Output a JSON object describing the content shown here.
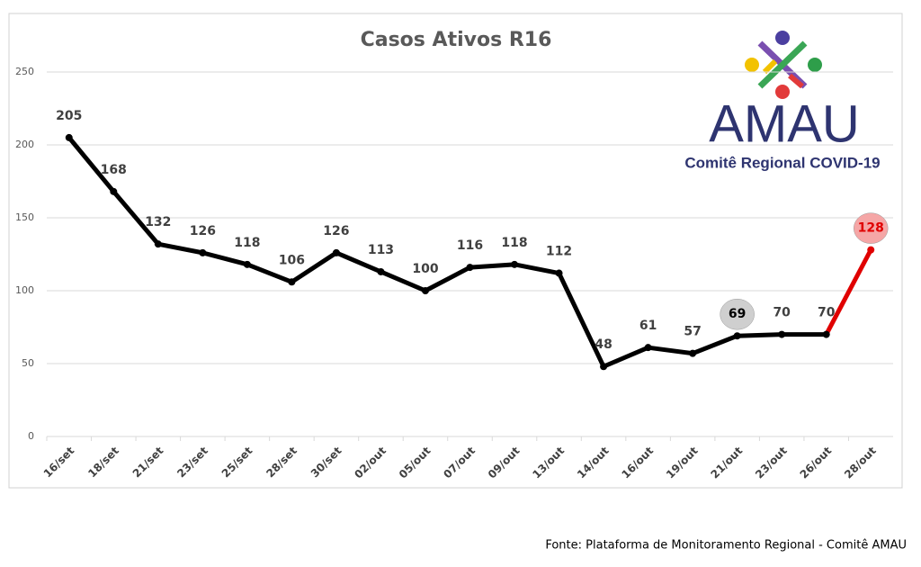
{
  "chart_data": {
    "type": "line",
    "title": "Casos Ativos R16",
    "categories": [
      "16/set",
      "18/set",
      "21/set",
      "23/set",
      "25/set",
      "28/set",
      "30/set",
      "02/out",
      "05/out",
      "07/out",
      "09/out",
      "13/out",
      "14/out",
      "16/out",
      "19/out",
      "21/out",
      "23/out",
      "26/out",
      "28/out"
    ],
    "series": [
      {
        "name": "Casos Ativos",
        "color": "#000000",
        "values": [
          205,
          168,
          132,
          126,
          118,
          106,
          126,
          113,
          100,
          116,
          118,
          112,
          48,
          61,
          57,
          69,
          70,
          70,
          128
        ]
      }
    ],
    "last_segment_color": "#e00000",
    "label_highlights": [
      {
        "index": 15,
        "color": "#cfcfcf",
        "text_color": "#000000"
      },
      {
        "index": 18,
        "color": "#f5a6a6",
        "text_color": "#e00000"
      }
    ],
    "ylim": [
      0,
      250
    ],
    "yticks": [
      0,
      50,
      100,
      150,
      200,
      250
    ],
    "grid": true,
    "logo_title": "AMAU",
    "logo_subtitle": "Comitê Regional COVID-19",
    "source": "Fonte: Plataforma de Monitoramento Regional - Comitê AMAU"
  }
}
